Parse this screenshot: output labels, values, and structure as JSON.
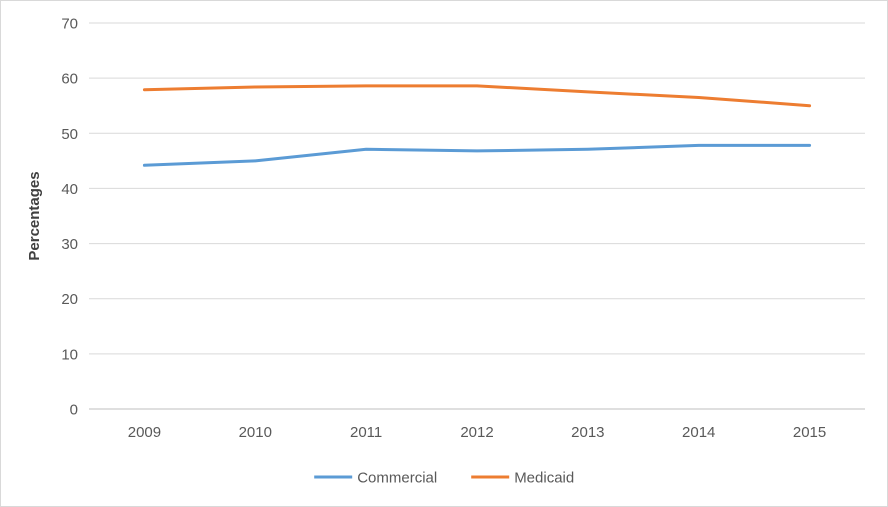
{
  "chart_data": {
    "type": "line",
    "title": "",
    "xlabel": "",
    "ylabel": "Percentages",
    "ylim": [
      0,
      70
    ],
    "ytick_step": 10,
    "grid": true,
    "legend_position": "bottom",
    "categories": [
      "2009",
      "2010",
      "2011",
      "2012",
      "2013",
      "2014",
      "2015"
    ],
    "series": [
      {
        "name": "Commercial",
        "color": "#5B9BD5",
        "values": [
          44.2,
          45.0,
          47.1,
          46.8,
          47.1,
          47.8,
          47.8
        ]
      },
      {
        "name": "Medicaid",
        "color": "#ED7D31",
        "values": [
          57.9,
          58.4,
          58.6,
          58.6,
          57.5,
          56.5,
          55.0
        ]
      }
    ],
    "colors": {
      "grid": "#D9D9D9",
      "axis": "#BFBFBF",
      "tick_text": "#595959",
      "axis_title_text": "#404040",
      "border": "#D9D9D9"
    }
  }
}
